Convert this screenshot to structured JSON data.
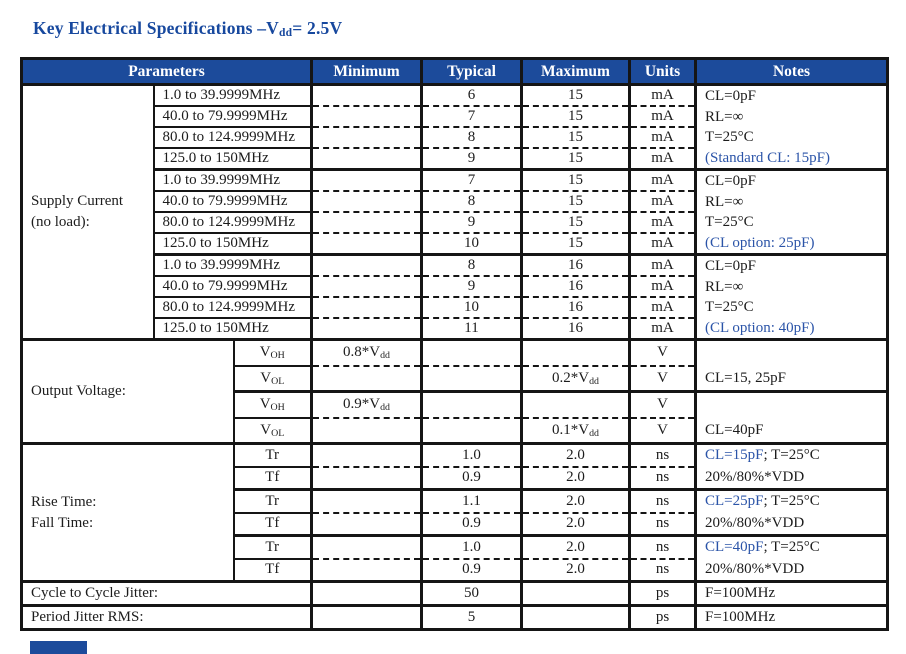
{
  "page": {
    "title": "Key Electrical Specifications –V~dd~= 2.5V"
  },
  "colors": {
    "header_bg": "#1c4b9b",
    "note_blue": "#2b54a8",
    "title": "#17489e",
    "border": "#151515",
    "ink": "#1c1c1c"
  },
  "table": {
    "headers": [
      "Parameters",
      "Minimum",
      "Typical",
      "Maximum",
      "Units",
      "Notes"
    ],
    "supply_current": {
      "label_lines": [
        "Supply Current",
        "(no load):"
      ],
      "freq_rows": [
        "1.0 to 39.9999MHz",
        "40.0 to 79.9999MHz",
        "80.0 to 124.9999MHz",
        "125.0 to 150MHz"
      ],
      "groups": [
        {
          "minimum": [
            "",
            "",
            "",
            ""
          ],
          "typical": [
            "6",
            "7",
            "8",
            "9"
          ],
          "maximum": [
            "15",
            "15",
            "15",
            "15"
          ],
          "unit": "mA",
          "notes": [
            [
              {
                "t": "CL=0pF"
              }
            ],
            [
              {
                "t": "RL=∞"
              }
            ],
            [
              {
                "t": "T=25°C"
              }
            ],
            [
              {
                "t": "(Standard CL: 15pF)",
                "blue": true
              }
            ]
          ]
        },
        {
          "minimum": [
            "",
            "",
            "",
            ""
          ],
          "typical": [
            "7",
            "8",
            "9",
            "10"
          ],
          "maximum": [
            "15",
            "15",
            "15",
            "15"
          ],
          "unit": "mA",
          "notes": [
            [
              {
                "t": "CL=0pF"
              }
            ],
            [
              {
                "t": "RL=∞"
              }
            ],
            [
              {
                "t": "T=25°C"
              }
            ],
            [
              {
                "t": "(CL option: 25pF)",
                "blue": true
              }
            ]
          ]
        },
        {
          "minimum": [
            "",
            "",
            "",
            ""
          ],
          "typical": [
            "8",
            "9",
            "10",
            "11"
          ],
          "maximum": [
            "16",
            "16",
            "16",
            "16"
          ],
          "unit": "mA",
          "notes": [
            [
              {
                "t": "CL=0pF"
              }
            ],
            [
              {
                "t": "RL=∞"
              }
            ],
            [
              {
                "t": "T=25°C"
              }
            ],
            [
              {
                "t": "(CL option: 40pF)",
                "blue": true
              }
            ]
          ]
        }
      ]
    },
    "output_voltage": {
      "label": "Output Voltage:",
      "rows": [
        {
          "param": "V~OH~",
          "min": "0.8*V~dd~",
          "typ": "",
          "max": "",
          "unit": "V"
        },
        {
          "param": "V~OL~",
          "min": "",
          "typ": "",
          "max": "0.2*V~dd~",
          "unit": "V"
        },
        {
          "param": "V~OH~",
          "min": "0.9*V~dd~",
          "typ": "",
          "max": "",
          "unit": "V"
        },
        {
          "param": "V~OL~",
          "min": "",
          "typ": "",
          "max": "0.1*V~dd~",
          "unit": "V"
        }
      ],
      "pair_notes": [
        [
          [],
          [
            {
              "t": "CL=15, 25pF"
            }
          ]
        ],
        [
          [],
          [
            {
              "t": "CL=40pF"
            }
          ]
        ]
      ]
    },
    "rise_fall": {
      "label_lines": [
        "Rise Time:",
        "Fall Time:"
      ],
      "rows": [
        {
          "param": "Tr",
          "min": "",
          "typ": "1.0",
          "max": "2.0",
          "unit": "ns"
        },
        {
          "param": "Tf",
          "min": "",
          "typ": "0.9",
          "max": "2.0",
          "unit": "ns"
        },
        {
          "param": "Tr",
          "min": "",
          "typ": "1.1",
          "max": "2.0",
          "unit": "ns"
        },
        {
          "param": "Tf",
          "min": "",
          "typ": "0.9",
          "max": "2.0",
          "unit": "ns"
        },
        {
          "param": "Tr",
          "min": "",
          "typ": "1.0",
          "max": "2.0",
          "unit": "ns"
        },
        {
          "param": "Tf",
          "min": "",
          "typ": "0.9",
          "max": "2.0",
          "unit": "ns"
        }
      ],
      "pair_notes": [
        [
          [
            {
              "t": "CL=15pF",
              "blue": true
            },
            {
              "t": "; T=25°C"
            }
          ],
          [
            {
              "t": "20%/80%*VDD"
            }
          ]
        ],
        [
          [
            {
              "t": "CL=25pF",
              "blue": true
            },
            {
              "t": "; T=25°C"
            }
          ],
          [
            {
              "t": "20%/80%*VDD"
            }
          ]
        ],
        [
          [
            {
              "t": "CL=40pF",
              "blue": true
            },
            {
              "t": "; T=25°C"
            }
          ],
          [
            {
              "t": "20%/80%*VDD"
            }
          ]
        ]
      ]
    },
    "jitter_rows": [
      {
        "label": "Cycle to Cycle Jitter:",
        "min": "",
        "typ": "50",
        "max": "",
        "unit": "ps",
        "note": "F=100MHz"
      },
      {
        "label": "Period Jitter RMS:",
        "min": "",
        "typ": "5",
        "max": "",
        "unit": "ps",
        "note": "F=100MHz"
      }
    ]
  }
}
